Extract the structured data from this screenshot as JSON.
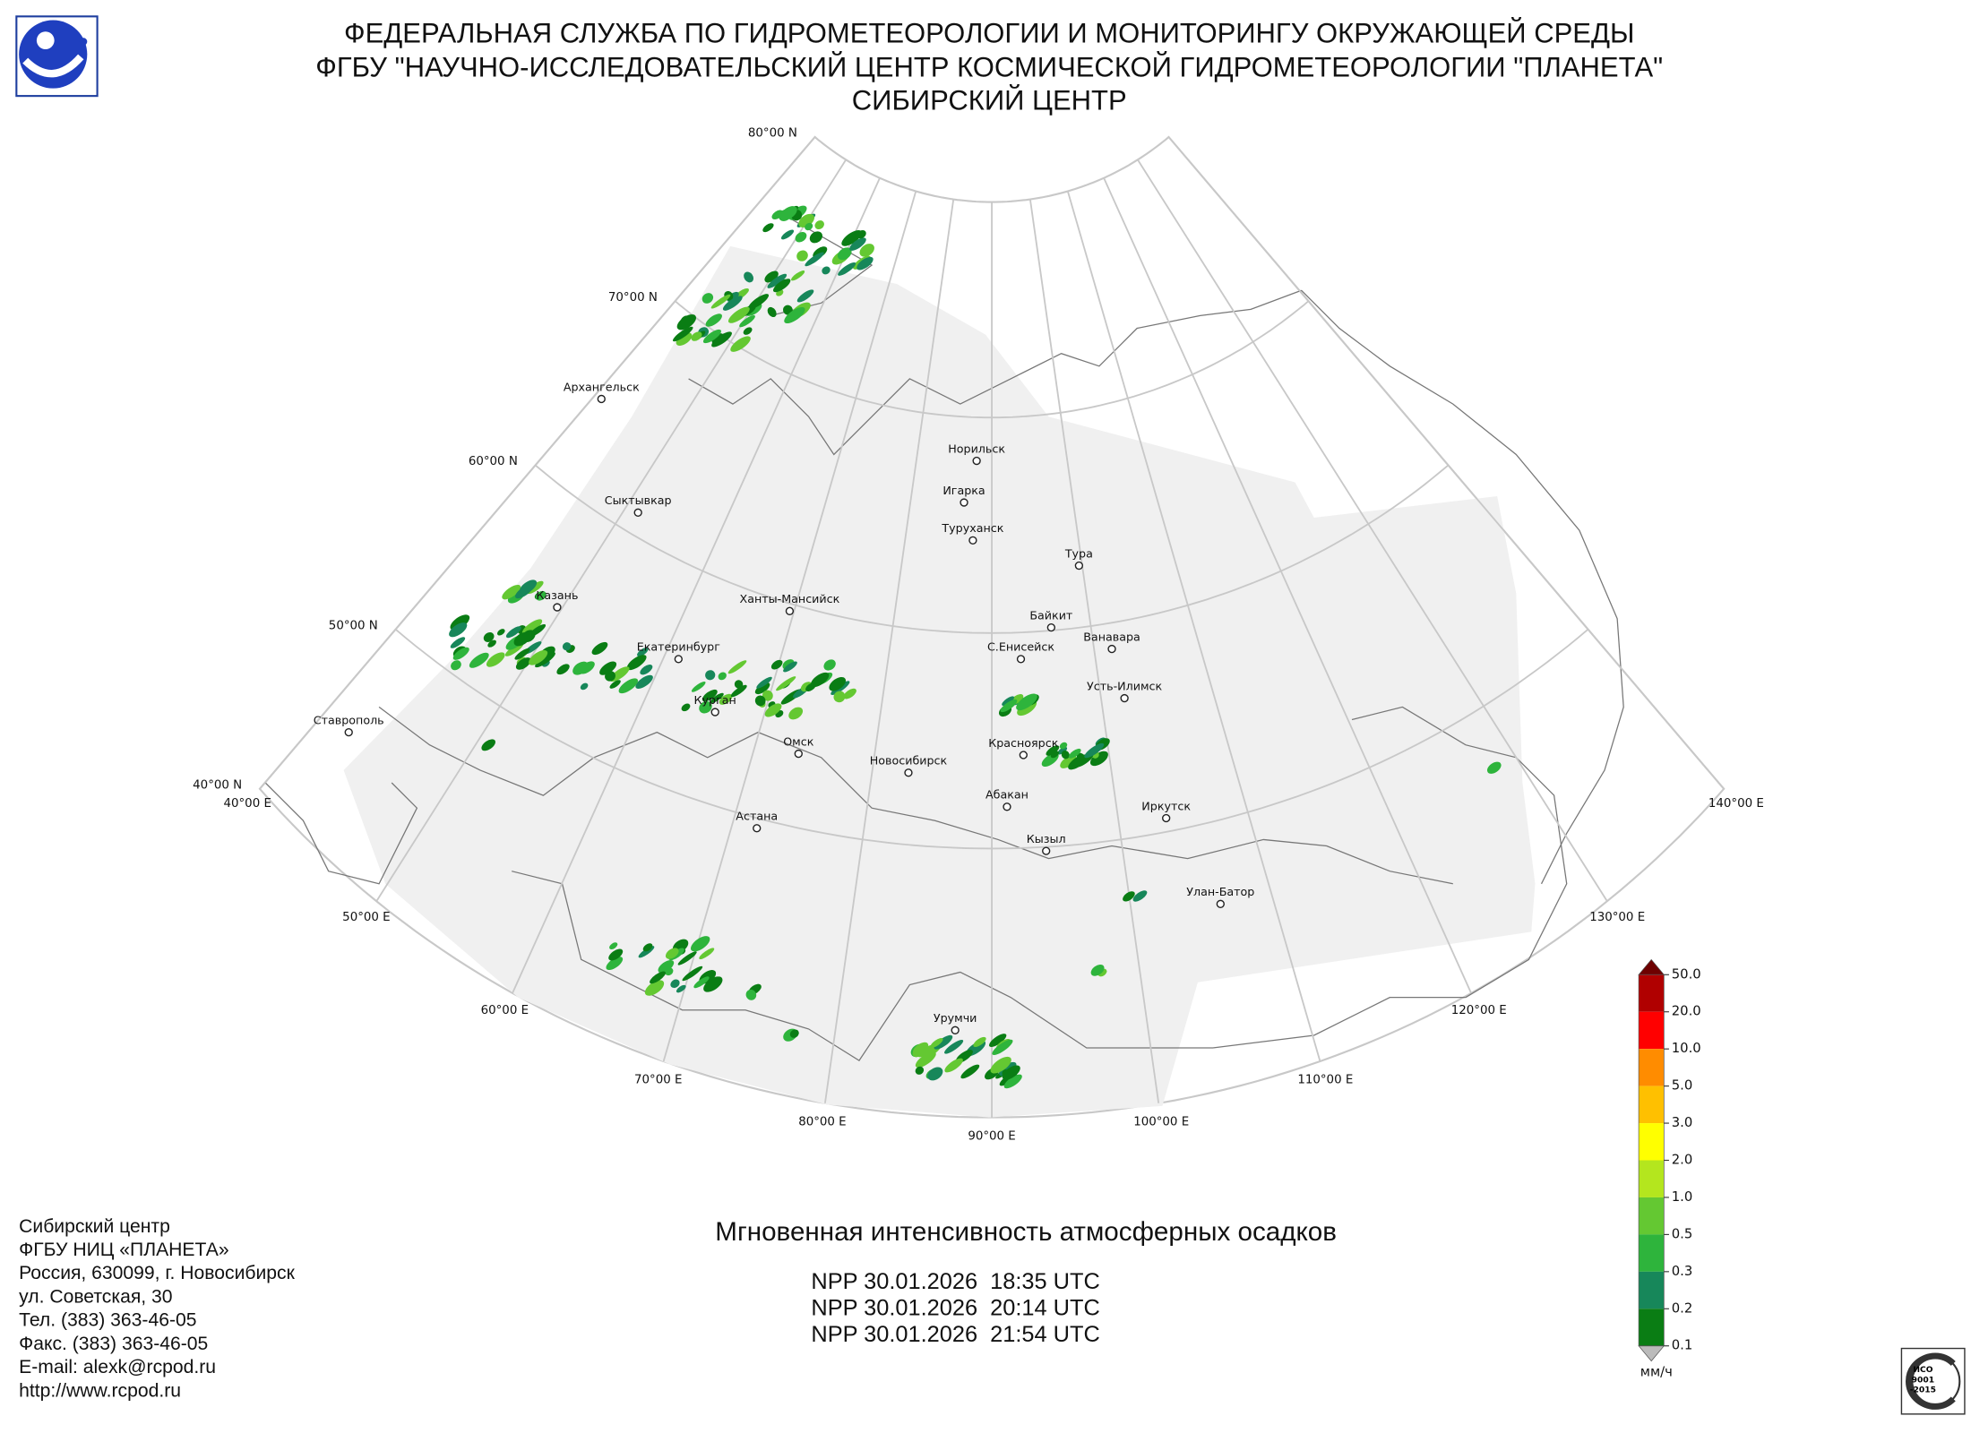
{
  "header": {
    "lines": [
      "ФЕДЕРАЛЬНАЯ СЛУЖБА ПО ГИДРОМЕТЕОРОЛОГИИ И МОНИТОРИНГУ ОКРУЖАЮЩЕЙ СРЕДЫ",
      "ФГБУ \"НАУЧНО-ИССЛЕДОВАТЕЛЬСКИЙ ЦЕНТР КОСМИЧЕСКОЙ ГИДРОМЕТЕОРОЛОГИИ \"ПЛАНЕТА\"",
      "СИБИРСКИЙ ЦЕНТР"
    ]
  },
  "map": {
    "lat_labels": [
      "80°00 N",
      "70°00 N",
      "60°00 N",
      "50°00 N",
      "40°00 N"
    ],
    "lon_labels": [
      "40°00 E",
      "50°00 E",
      "60°00 E",
      "70°00 E",
      "80°00 E",
      "90°00 E",
      "100°00 E",
      "110°00 E",
      "120°00 E",
      "130°00 E",
      "140°00 E"
    ],
    "cities": [
      "Архангельск",
      "Сыктывкар",
      "Норильск",
      "Игарка",
      "Туруханск",
      "Тура",
      "Казань",
      "Ханты-Мансийск",
      "Байкит",
      "Ванавара",
      "Екатеринбург",
      "С.Енисейск",
      "Усть-Илимск",
      "Курган",
      "Ставрополь",
      "Омск",
      "Красноярск",
      "Новосибирск",
      "Абакан",
      "Иркутск",
      "Астана",
      "Кызыл",
      "Улан-Батор",
      "Урумчи"
    ]
  },
  "colorbar": {
    "labels": [
      "50.0",
      "20.0",
      "10.0",
      "5.0",
      "3.0",
      "2.0",
      "1.0",
      "0.5",
      "0.3",
      "0.2",
      "0.1"
    ],
    "colors": [
      "#b00000",
      "#ff0000",
      "#ff8c00",
      "#ffc000",
      "#ffff00",
      "#b4e61e",
      "#64c832",
      "#2eb43c",
      "#17875a",
      "#0a7d14"
    ],
    "over_color": "#6e0000",
    "under_color": "#bbbbbb",
    "unit": "мм/ч"
  },
  "footer": {
    "contacts": [
      "Сибирский центр",
      "ФГБУ НИЦ «ПЛАНЕТА»",
      "Россия, 630099, г. Новосибирск",
      "ул. Советская, 30",
      "Тел. (383) 363-46-05",
      "Факс. (383) 363-46-05",
      "E-mail: alexk@rcpod.ru",
      "http://www.rcpod.ru"
    ],
    "title": "Мгновенная интенсивность атмосферных осадков",
    "passes": [
      "NPP 30.01.2026  18:35 UTC",
      "NPP 30.01.2026  20:14 UTC",
      "NPP 30.01.2026  21:54 UTC"
    ]
  },
  "iso": {
    "lines": [
      "ИСО",
      "9001",
      "-2015"
    ]
  }
}
